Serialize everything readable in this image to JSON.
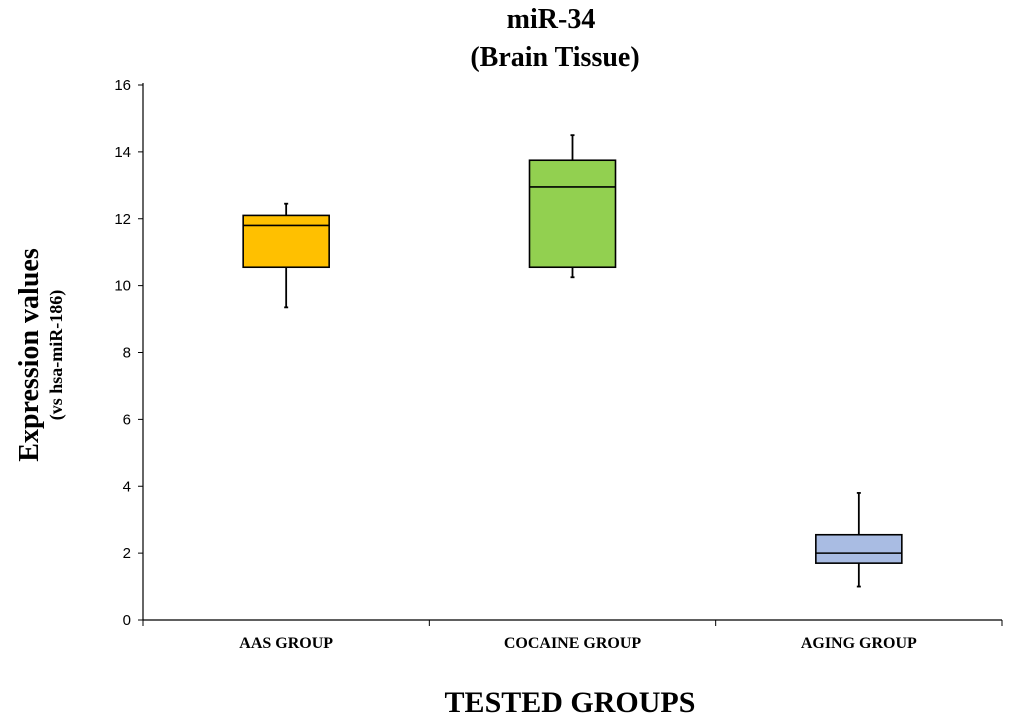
{
  "chart_data": {
    "type": "box",
    "title": "miR-34",
    "subtitle": "(Brain Tissue)",
    "xlabel": "TESTED GROUPS",
    "ylabel": "Expression values",
    "ylabel_sub": "(vs hsa-miR-186)",
    "ylim": [
      0,
      16
    ],
    "yticks": [
      "0",
      "2",
      "4",
      "6",
      "8",
      "10",
      "12",
      "14",
      "16"
    ],
    "grid": false,
    "categories": [
      "AAS GROUP",
      "COCAINE GROUP",
      "AGING GROUP"
    ],
    "boxes": [
      {
        "category": "AAS GROUP",
        "min": 9.35,
        "q1": 10.55,
        "median": 11.8,
        "q3": 12.1,
        "max": 12.45,
        "color": "#FFC000"
      },
      {
        "category": "COCAINE GROUP",
        "min": 10.25,
        "q1": 10.55,
        "median": 12.95,
        "q3": 13.75,
        "max": 14.5,
        "color": "#92D050"
      },
      {
        "category": "AGING GROUP",
        "min": 1.0,
        "q1": 1.7,
        "median": 2.0,
        "q3": 2.55,
        "max": 3.8,
        "color": "#A9BCE3"
      }
    ]
  }
}
